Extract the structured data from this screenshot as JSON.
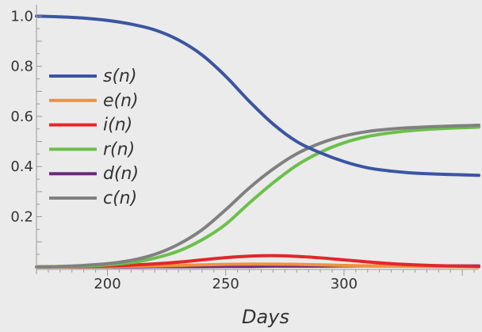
{
  "chart_data": {
    "type": "line",
    "title": "",
    "xlabel": "Days",
    "ylabel": "",
    "xlim": [
      170,
      357
    ],
    "ylim": [
      -0.01,
      1.02
    ],
    "xticks": [
      200,
      250,
      300
    ],
    "xtick_labels": [
      "200",
      "250",
      "300"
    ],
    "yticks": [
      0.2,
      0.4,
      0.6,
      0.8,
      1.0
    ],
    "ytick_labels": [
      "0.2",
      "0.4",
      "0.6",
      "0.8",
      "1.0"
    ],
    "grid": false,
    "legend_position": "left",
    "x": [
      170,
      180,
      190,
      200,
      210,
      220,
      230,
      240,
      250,
      260,
      270,
      280,
      290,
      300,
      310,
      320,
      330,
      340,
      350,
      357
    ],
    "series": [
      {
        "name": "s(n)",
        "color": "#3b55a2",
        "values": [
          1.0,
          0.997,
          0.992,
          0.983,
          0.968,
          0.945,
          0.905,
          0.845,
          0.76,
          0.66,
          0.57,
          0.5,
          0.455,
          0.42,
          0.395,
          0.382,
          0.374,
          0.37,
          0.367,
          0.365
        ]
      },
      {
        "name": "e(n)",
        "color": "#f0913a",
        "values": [
          0.0,
          0.0,
          0.001,
          0.001,
          0.002,
          0.004,
          0.006,
          0.008,
          0.01,
          0.011,
          0.011,
          0.01,
          0.008,
          0.006,
          0.004,
          0.003,
          0.002,
          0.001,
          0.001,
          0.0
        ]
      },
      {
        "name": "i(n)",
        "color": "#e3262b",
        "values": [
          0.0,
          0.001,
          0.002,
          0.004,
          0.007,
          0.012,
          0.019,
          0.028,
          0.037,
          0.043,
          0.045,
          0.042,
          0.036,
          0.028,
          0.02,
          0.013,
          0.008,
          0.005,
          0.003,
          0.002
        ]
      },
      {
        "name": "r(n)",
        "color": "#6bc04b",
        "values": [
          0.0,
          0.001,
          0.003,
          0.008,
          0.017,
          0.035,
          0.063,
          0.108,
          0.17,
          0.255,
          0.335,
          0.405,
          0.457,
          0.495,
          0.52,
          0.535,
          0.545,
          0.551,
          0.555,
          0.557
        ]
      },
      {
        "name": "d(n)",
        "color": "#6a2a7e",
        "values": [
          0.0,
          0.0,
          0.0,
          0.0,
          0.0,
          0.001,
          0.001,
          0.001,
          0.002,
          0.002,
          0.003,
          0.003,
          0.003,
          0.004,
          0.004,
          0.004,
          0.004,
          0.004,
          0.004,
          0.004
        ]
      },
      {
        "name": "c(n)",
        "color": "#808080",
        "values": [
          0.0,
          0.002,
          0.006,
          0.013,
          0.026,
          0.05,
          0.09,
          0.148,
          0.228,
          0.315,
          0.39,
          0.451,
          0.493,
          0.522,
          0.54,
          0.55,
          0.556,
          0.56,
          0.563,
          0.565
        ]
      }
    ]
  }
}
